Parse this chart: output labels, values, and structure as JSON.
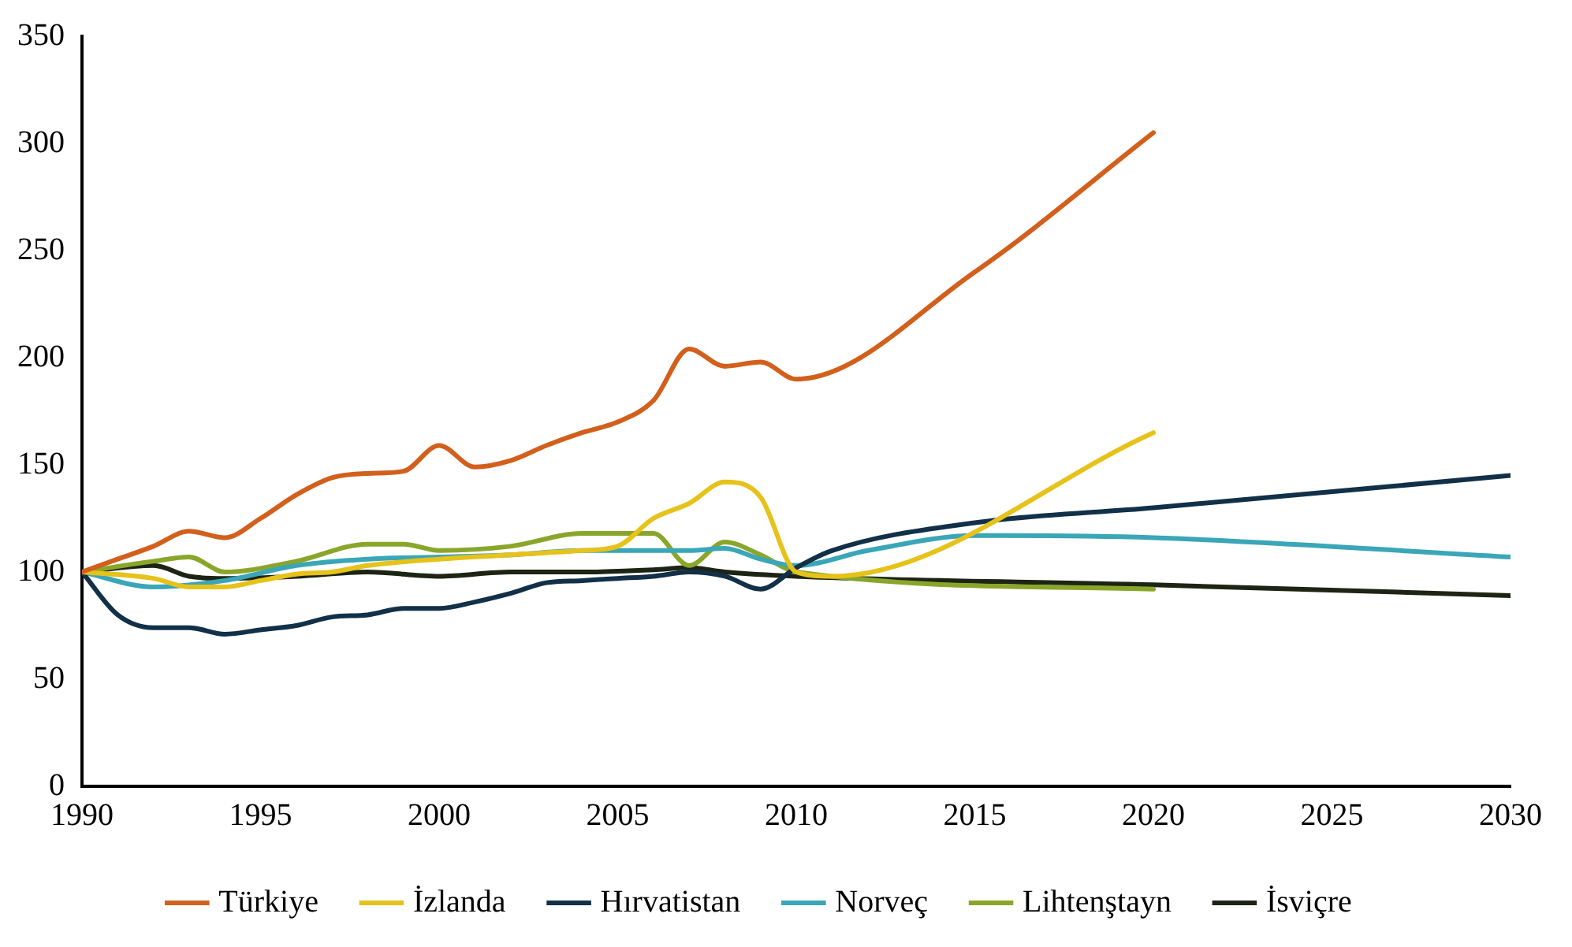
{
  "chart_data": {
    "type": "line",
    "xlim": [
      1990,
      2030
    ],
    "xticks": [
      1990,
      1995,
      2000,
      2005,
      2010,
      2015,
      2020,
      2025,
      2030
    ],
    "ylim": [
      0,
      350
    ],
    "yticks": [
      0,
      50,
      100,
      150,
      200,
      250,
      300,
      350
    ],
    "grid": false,
    "legend": "bottom",
    "marker": "none",
    "line_style": "solid",
    "series": [
      {
        "name": "Türkiye",
        "color": "#d2601c",
        "x": [
          1990,
          1991,
          1992,
          1993,
          1994,
          1995,
          1996,
          1997,
          1998,
          1999,
          2000,
          2001,
          2002,
          2003,
          2004,
          2005,
          2006,
          2007,
          2008,
          2009,
          2010,
          2015,
          2020
        ],
        "values": [
          100,
          106,
          112,
          119,
          116,
          125,
          136,
          144,
          146,
          147,
          159,
          149,
          152,
          159,
          165,
          170,
          180,
          204,
          196,
          198,
          190,
          240,
          305
        ]
      },
      {
        "name": "İzlanda",
        "color": "#e6c21a",
        "x": [
          1990,
          1992,
          1993,
          1994,
          1995,
          1996,
          1997,
          1998,
          2000,
          2002,
          2004,
          2005,
          2006,
          2007,
          2008,
          2009,
          2010,
          2011,
          2020
        ],
        "values": [
          100,
          97,
          93,
          93,
          96,
          99,
          100,
          103,
          106,
          108,
          110,
          112,
          125,
          132,
          142,
          135,
          100,
          98,
          165
        ]
      },
      {
        "name": "Hırvatistan",
        "color": "#123048",
        "x": [
          1990,
          1991,
          1992,
          1993,
          1994,
          1995,
          1996,
          1997,
          1998,
          1999,
          2000,
          2001,
          2002,
          2003,
          2004,
          2005,
          2006,
          2007,
          2008,
          2009,
          2010,
          2011,
          2015,
          2020,
          2030
        ],
        "values": [
          100,
          80,
          74,
          74,
          71,
          73,
          75,
          79,
          80,
          83,
          83,
          86,
          90,
          95,
          96,
          97,
          98,
          100,
          98,
          92,
          102,
          110,
          123,
          130,
          145
        ]
      },
      {
        "name": "Norveç",
        "color": "#3aa6b8",
        "x": [
          1990,
          1992,
          1994,
          1996,
          1998,
          2000,
          2002,
          2004,
          2006,
          2007,
          2008,
          2009,
          2010,
          2012,
          2015,
          2020,
          2030
        ],
        "values": [
          100,
          93,
          96,
          103,
          106,
          107,
          108,
          110,
          110,
          110,
          111,
          106,
          103,
          110,
          117,
          116,
          107
        ]
      },
      {
        "name": "Lihtenştayn",
        "color": "#8aa62a",
        "x": [
          1990,
          1992,
          1993,
          1994,
          1996,
          1998,
          1999,
          2000,
          2002,
          2004,
          2006,
          2007,
          2008,
          2009,
          2010,
          2020
        ],
        "values": [
          100,
          105,
          107,
          100,
          105,
          113,
          113,
          110,
          112,
          118,
          118,
          103,
          114,
          108,
          100,
          92
        ]
      },
      {
        "name": "İsviçre",
        "color": "#1c2414",
        "x": [
          1990,
          1992,
          1993,
          1994,
          1996,
          1998,
          2000,
          2002,
          2004,
          2006,
          2007,
          2008,
          2010,
          2020,
          2030
        ],
        "values": [
          100,
          103,
          98,
          97,
          98,
          100,
          98,
          100,
          100,
          101,
          102,
          100,
          98,
          94,
          89
        ]
      }
    ]
  }
}
